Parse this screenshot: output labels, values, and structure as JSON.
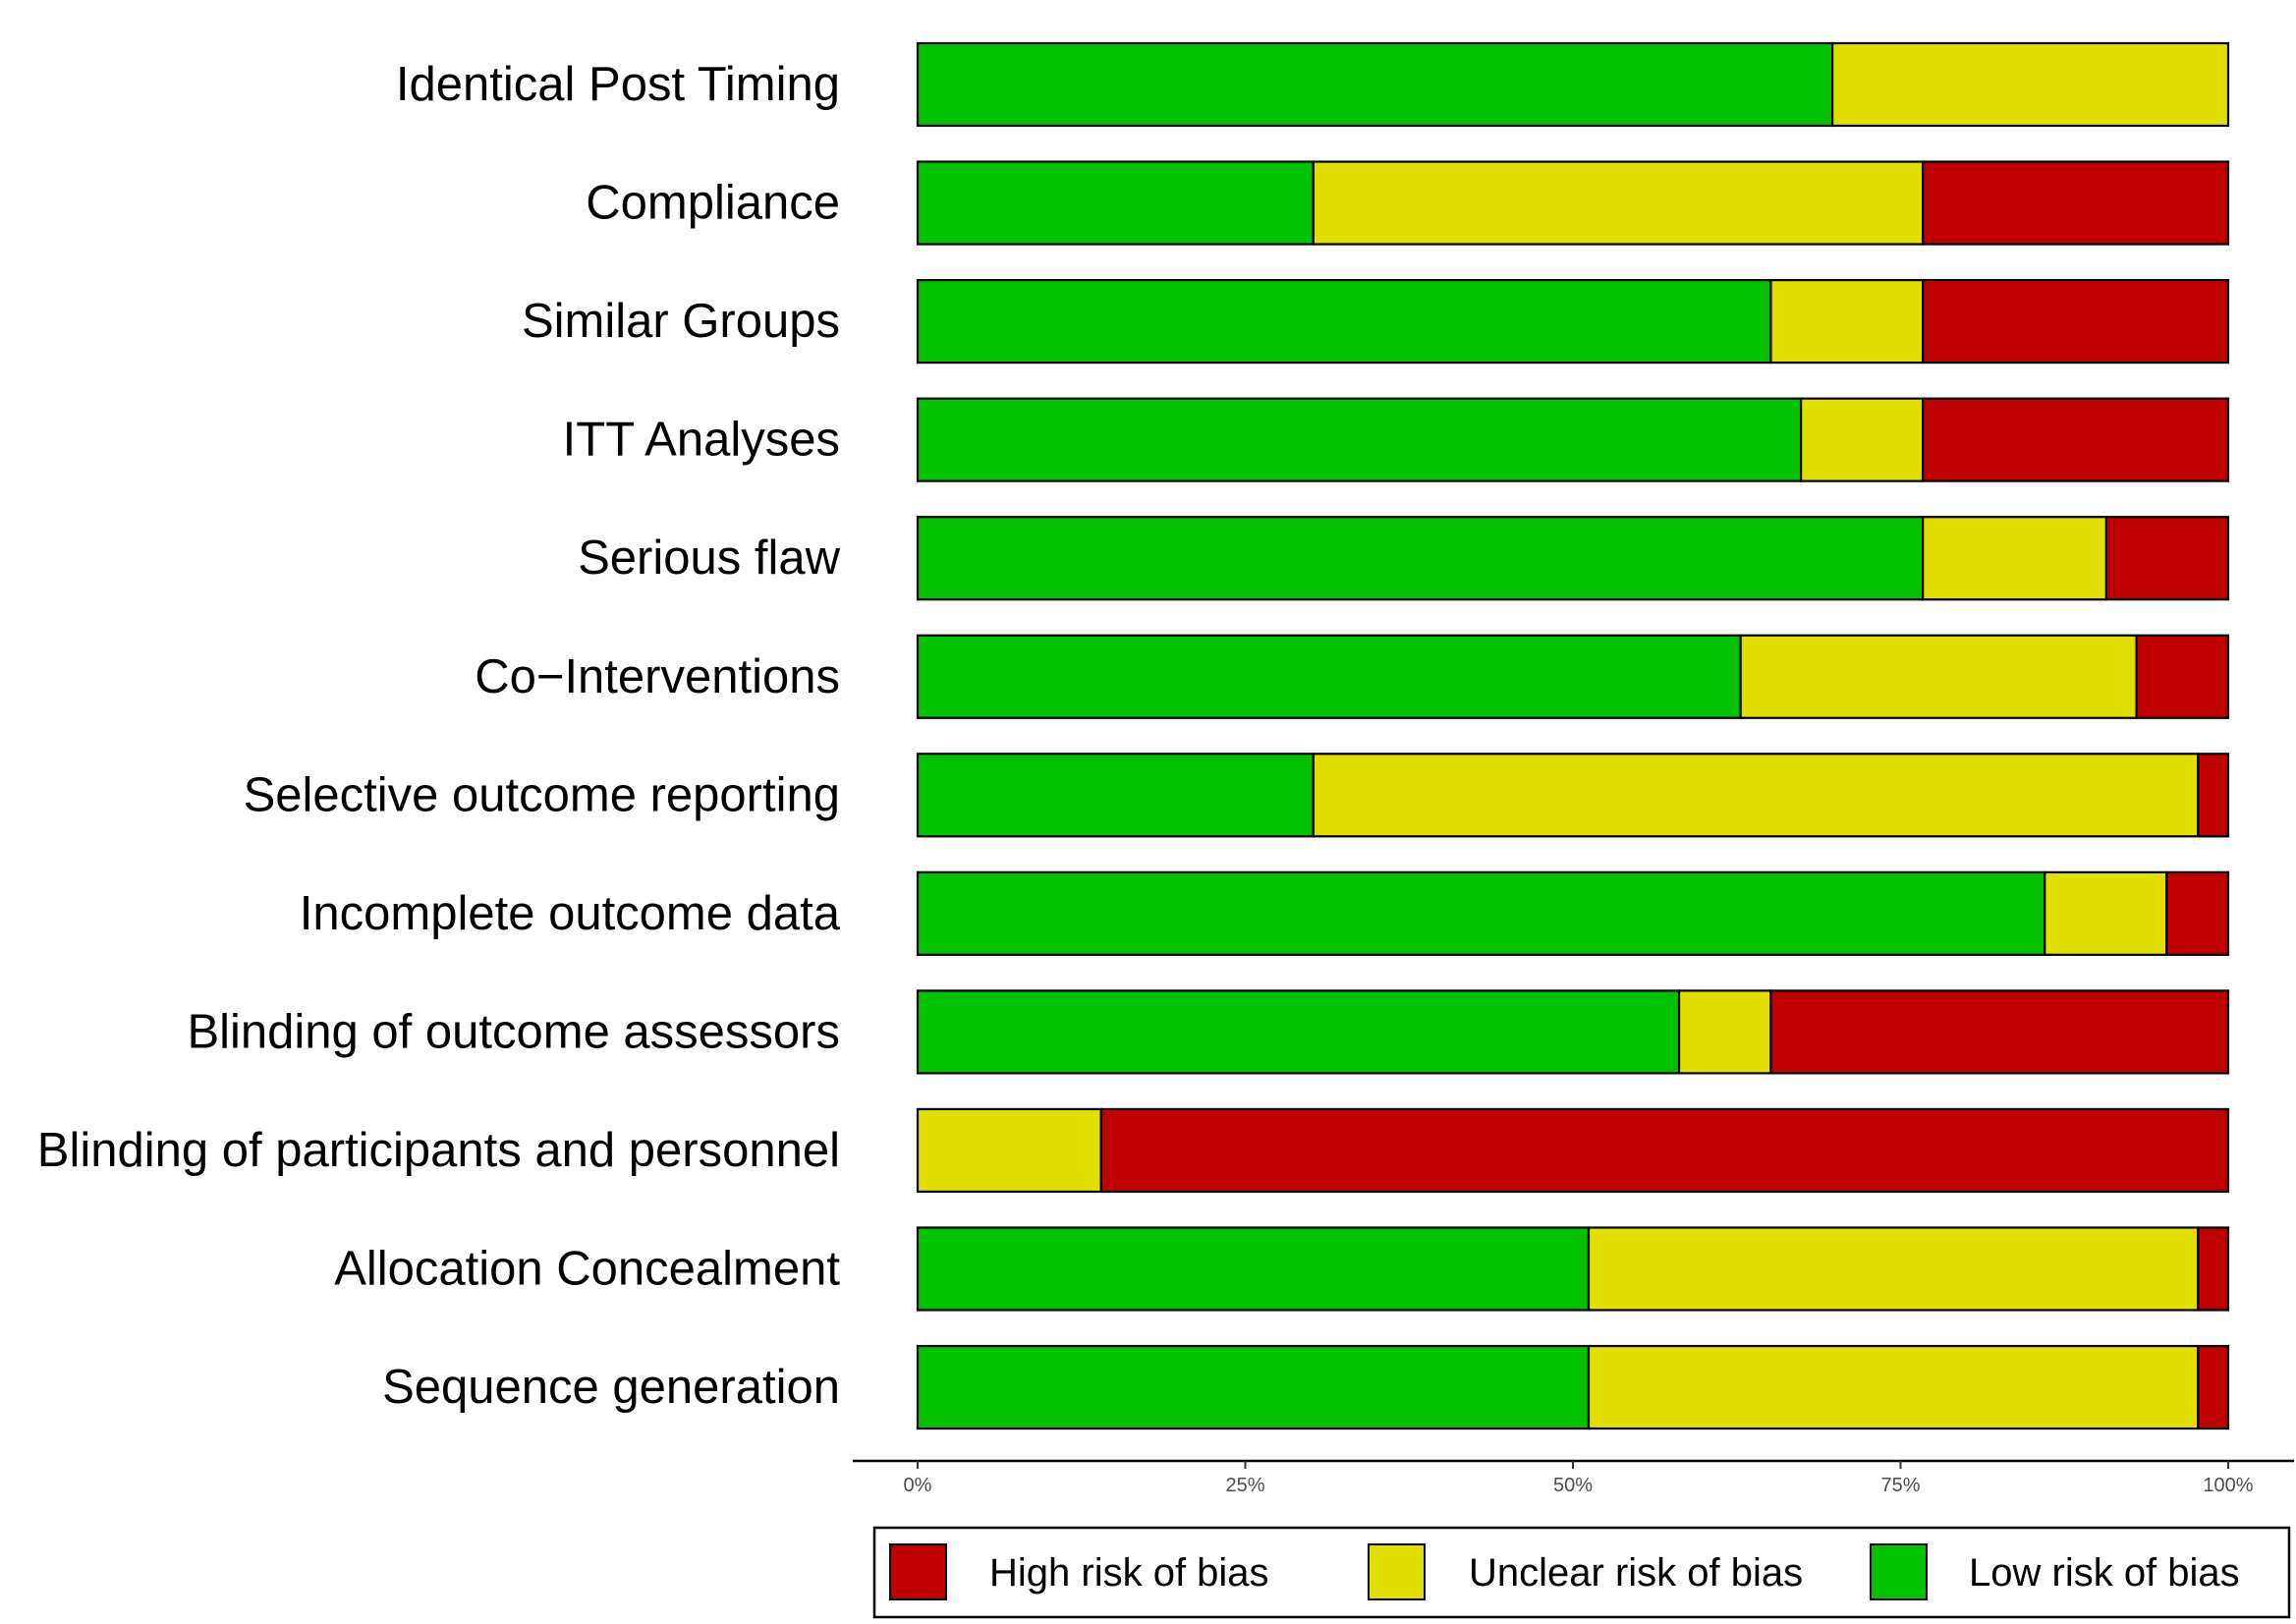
{
  "chart_data": {
    "type": "bar",
    "orientation": "horizontal",
    "stacked": true,
    "title": "",
    "xlabel": "",
    "ylabel": "",
    "xlim": [
      0,
      100
    ],
    "x_ticks": [
      0,
      25,
      50,
      75,
      100
    ],
    "x_tick_labels": [
      "0%",
      "25%",
      "50%",
      "75%",
      "100%"
    ],
    "grid": false,
    "legend_position": "bottom",
    "categories": [
      "Identical Post Timing",
      "Compliance",
      "Similar Groups",
      "ITT Analyses",
      "Serious flaw",
      "Co−Interventions",
      "Selective outcome reporting",
      "Incomplete outcome data",
      "Blinding of outcome assessors",
      "Blinding of participants and personnel",
      "Allocation Concealment",
      "Sequence generation"
    ],
    "series": [
      {
        "name": "Low risk of bias",
        "color": "#02c100",
        "values": [
          69.8,
          30.2,
          65.1,
          67.4,
          76.7,
          62.8,
          30.2,
          86.0,
          58.1,
          0.0,
          51.2,
          51.2
        ]
      },
      {
        "name": "Unclear risk of bias",
        "color": "#e1df00",
        "values": [
          30.2,
          46.5,
          11.6,
          9.3,
          14.0,
          30.2,
          67.5,
          9.3,
          7.0,
          14.0,
          46.5,
          46.5
        ]
      },
      {
        "name": "High risk of bias",
        "color": "#bf0000",
        "values": [
          0.0,
          23.3,
          23.3,
          23.3,
          9.3,
          7.0,
          2.3,
          4.7,
          34.9,
          86.0,
          2.3,
          2.3
        ]
      }
    ],
    "legend": [
      {
        "name": "High risk of bias",
        "color": "#bf0000"
      },
      {
        "name": "Unclear risk of bias",
        "color": "#e1df00"
      },
      {
        "name": "Low risk of bias",
        "color": "#02c100"
      }
    ]
  }
}
